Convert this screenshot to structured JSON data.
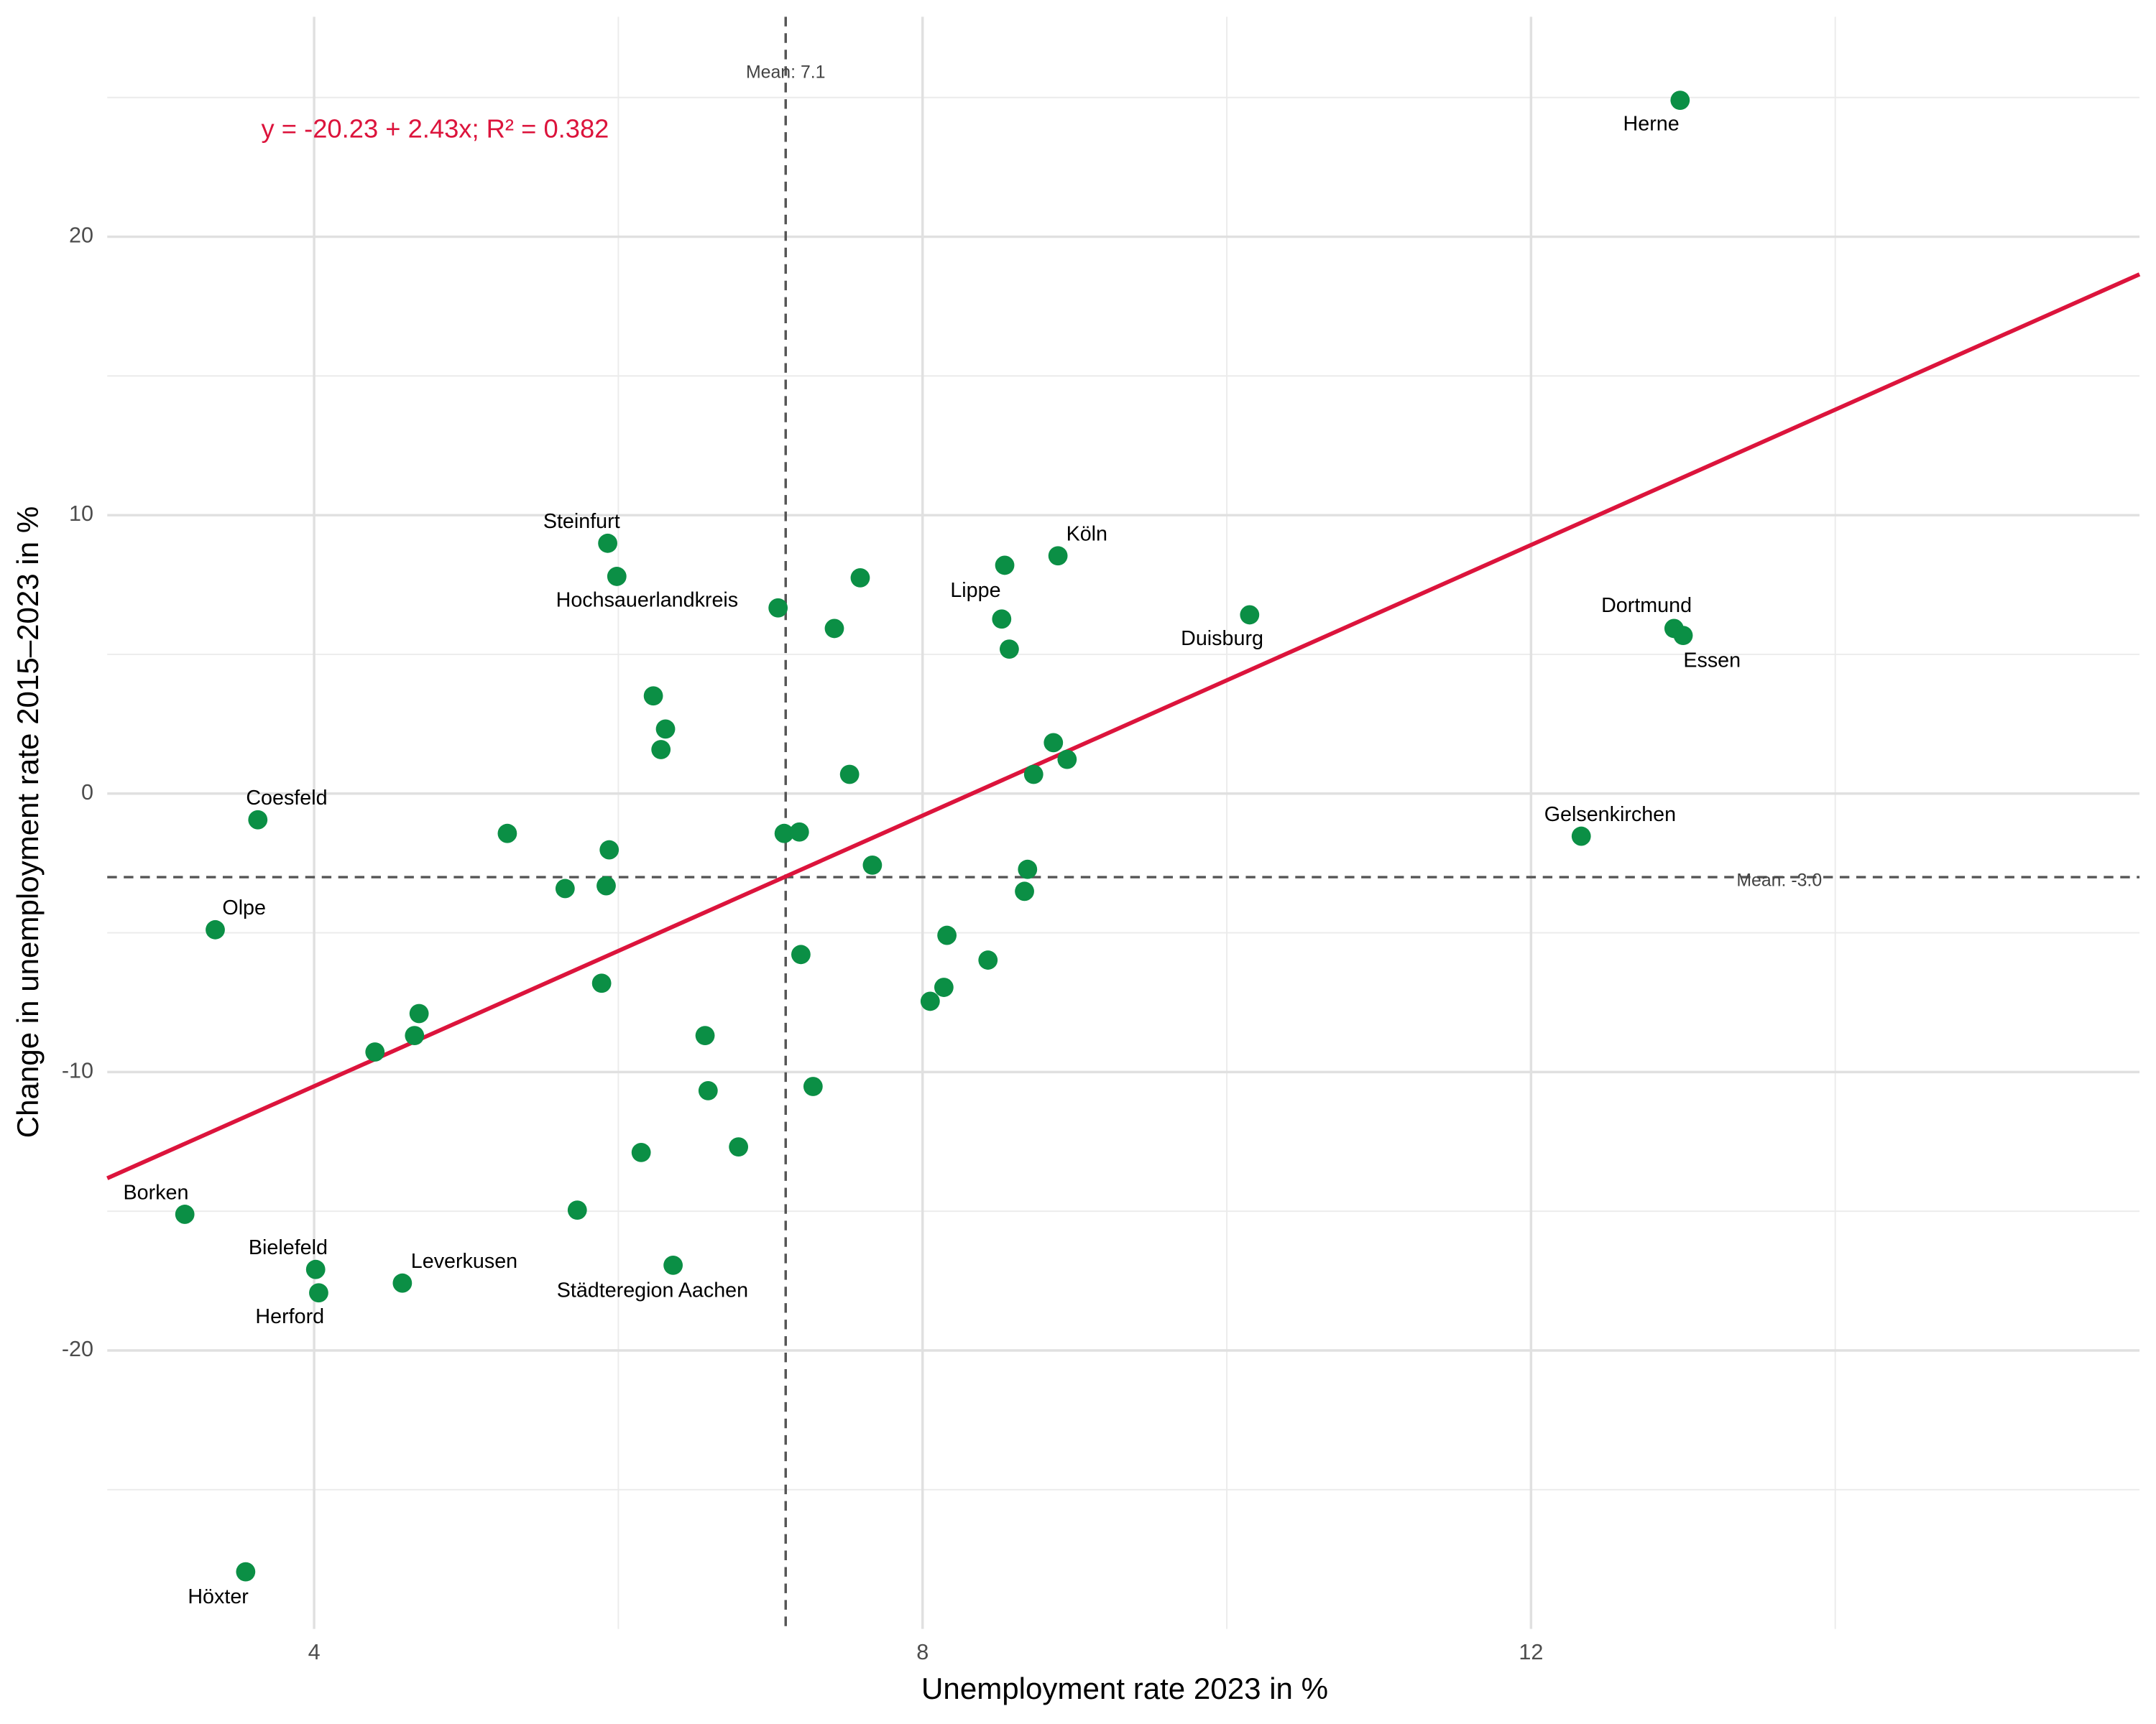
{
  "chart_data": {
    "type": "scatter",
    "x_label": "Unemployment rate 2023 in %",
    "y_label": "Change in unemployment rate 2015–2023 in %",
    "xlim": [
      2.64,
      16.0
    ],
    "ylim": [
      -30.0,
      27.9
    ],
    "xticks": [
      4,
      8,
      12
    ],
    "yticks": [
      -20,
      -10,
      0,
      10,
      20
    ],
    "x_minor_grid": [
      6,
      10,
      14
    ],
    "y_minor_grid": [
      -25,
      -15,
      -5,
      5,
      15,
      25
    ],
    "grid": true,
    "color": "#0b8f45",
    "x": [
      12.98,
      12.94,
      13.0,
      12.33,
      10.15,
      8.89,
      8.52,
      5.93,
      5.99,
      3.63,
      3.35,
      3.15,
      4.01,
      4.03,
      4.58,
      6.36,
      3.55,
      8.54,
      8.57,
      7.05,
      7.59,
      7.42,
      6.23,
      6.31,
      6.28,
      8.86,
      8.95,
      8.73,
      7.52,
      5.27,
      7.09,
      7.19,
      5.94,
      7.67,
      8.69,
      5.65,
      5.92,
      8.67,
      8.16,
      7.2,
      8.43,
      5.89,
      8.14,
      8.05,
      4.69,
      4.66,
      4.4,
      6.57,
      6.59,
      7.28,
      6.79,
      6.15,
      5.73
    ],
    "values": [
      24.9,
      5.93,
      5.68,
      -1.53,
      6.42,
      8.54,
      6.27,
      8.99,
      7.8,
      -0.94,
      -4.89,
      -15.11,
      -17.09,
      -17.93,
      -17.58,
      -16.94,
      -27.95,
      8.2,
      5.19,
      6.67,
      7.75,
      5.93,
      3.51,
      2.32,
      1.58,
      1.83,
      1.23,
      0.69,
      0.69,
      -1.43,
      -1.43,
      -1.38,
      -2.02,
      -2.57,
      -2.72,
      -3.41,
      -3.31,
      -3.51,
      -5.09,
      -5.78,
      -5.98,
      -6.81,
      -6.96,
      -7.46,
      -7.9,
      -8.69,
      -9.28,
      -8.69,
      -10.67,
      -10.52,
      -12.69,
      -12.89,
      -14.96
    ],
    "labels": [
      "Herne",
      "Dortmund",
      "Essen",
      "Gelsenkirchen",
      "Duisburg",
      "Köln",
      "Lippe",
      "Steinfurt",
      "Hochsauerlandkreis",
      "Coesfeld",
      "Olpe",
      "Borken",
      "Bielefeld",
      "Herford",
      "Leverkusen",
      "Städteregion Aachen",
      "Höxter",
      null,
      null,
      null,
      null,
      null,
      null,
      null,
      null,
      null,
      null,
      null,
      null,
      null,
      null,
      null,
      null,
      null,
      null,
      null,
      null,
      null,
      null,
      null,
      null,
      null,
      null,
      null,
      null,
      null,
      null,
      null,
      null,
      null,
      null,
      null,
      null
    ],
    "mean_x": {
      "value": 7.1,
      "label": "Mean: 7.1"
    },
    "mean_y": {
      "value": -3.0,
      "label": "Mean: -3.0"
    },
    "regression": {
      "intercept": -20.23,
      "slope": 2.43,
      "color": "#dc143c",
      "label": "y = -20.23 + 2.43x; R² = 0.382"
    }
  }
}
